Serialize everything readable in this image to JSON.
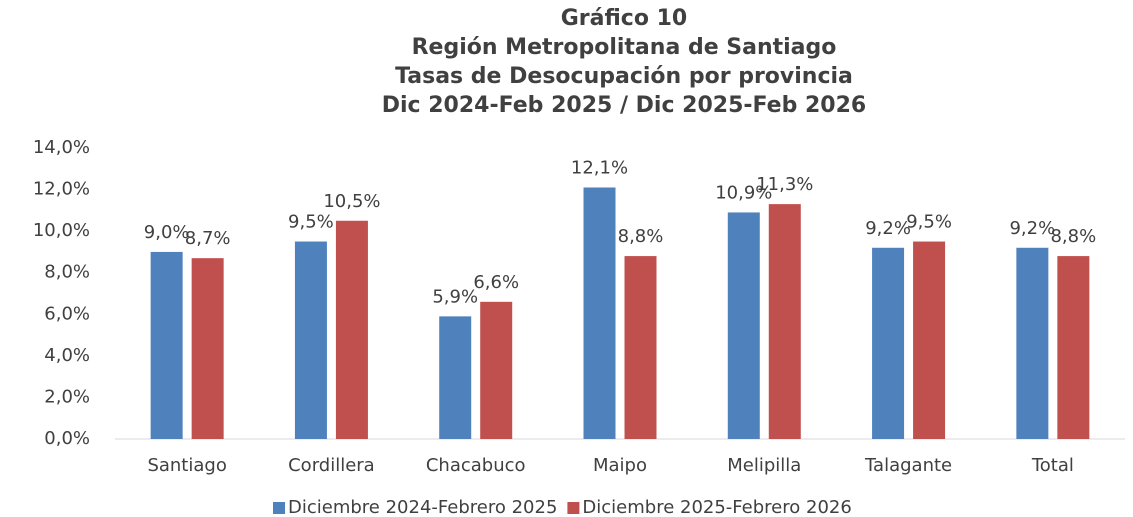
{
  "chart_data": {
    "type": "bar",
    "title": [
      "Gráfico 10",
      "Región Metropolitana de Santiago",
      "Tasas de Desocupación por provincia",
      "Dic 2024-Feb 2025 / Dic 2025-Feb 2026"
    ],
    "categories": [
      "Santiago",
      "Cordillera",
      "Chacabuco",
      "Maipo",
      "Melipilla",
      "Talagante",
      "Total"
    ],
    "series": [
      {
        "name": "Diciembre 2024-Febrero 2025",
        "color": "#4f81bd",
        "values": [
          9.0,
          9.5,
          5.9,
          12.1,
          10.9,
          9.2,
          9.2
        ],
        "value_labels": [
          "9,0%",
          "9,5%",
          "5,9%",
          "12,1%",
          "10,9%",
          "9,2%",
          "9,2%"
        ]
      },
      {
        "name": "Diciembre 2025-Febrero 2026",
        "color": "#c0504d",
        "values": [
          8.7,
          10.5,
          6.6,
          8.8,
          11.3,
          9.5,
          8.8
        ],
        "value_labels": [
          "8,7%",
          "10,5%",
          "6,6%",
          "8,8%",
          "11,3%",
          "9,5%",
          "8,8%"
        ]
      }
    ],
    "ylim": [
      0,
      14
    ],
    "yticks": [
      {
        "value": 0,
        "label": "0,0%"
      },
      {
        "value": 2,
        "label": "2,0%"
      },
      {
        "value": 4,
        "label": "4,0%"
      },
      {
        "value": 6,
        "label": "6,0%"
      },
      {
        "value": 8,
        "label": "8,0%"
      },
      {
        "value": 10,
        "label": "10,0%"
      },
      {
        "value": 12,
        "label": "12,0%"
      },
      {
        "value": 14,
        "label": "14,0%"
      }
    ],
    "grid": false,
    "legend": "bottom"
  }
}
